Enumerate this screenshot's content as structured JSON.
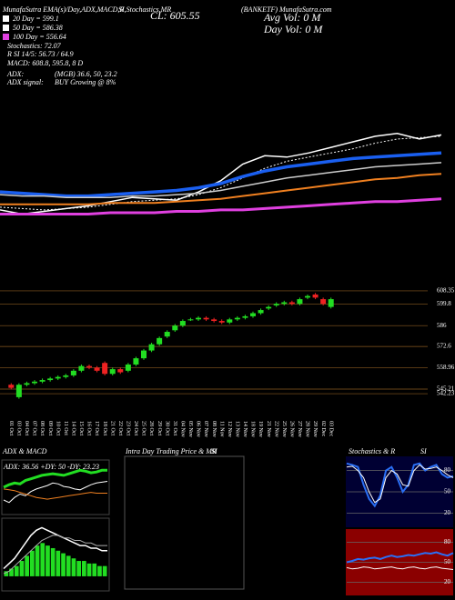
{
  "header": {
    "source": "MunafaSutra EMA(s)/Day,ADX,MACD,R",
    "source2": "SI,Stochastics,MR",
    "close": "CL: 605.55",
    "symbol": "(BANKETF) MunafaSutra.com",
    "ema20": "20 Day = 599.1",
    "ema50": "50 Day = 586.38",
    "ema100": "100 Day = 556.64",
    "stoch": "Stochastics: 72.07",
    "rsi": "R  SI 14/5: 56.73 / 64.9",
    "macd": "MACD: 608.8, 595.8, 8 D",
    "adx_label": "ADX:",
    "adx_value": "(MGB) 36.6, 50, 23.2",
    "signal_label": "ADX  signal:",
    "signal_value": "BUY Growing @ 8%",
    "avg_vol": "Avg Vol: 0  M",
    "day_vol": "Day Vol: 0  M",
    "panel_adx": "ADX  & MACD",
    "panel_intraday": "Intra Day Trading Price  & MR",
    "panel_intraday_si": "SI",
    "panel_stoch": "Stochastics & R",
    "panel_stoch_si": "SI"
  },
  "chart_data": [
    {
      "type": "line",
      "ylim": [
        530,
        615
      ],
      "series": [
        {
          "color": "#ffffff",
          "width": 1.5,
          "dash": false,
          "values": [
            549,
            546,
            548,
            550,
            552,
            555,
            558,
            557,
            556,
            562,
            570,
            582,
            588,
            587,
            590,
            594,
            598,
            602,
            604,
            600,
            603
          ]
        },
        {
          "color": "#ffffff",
          "width": 1,
          "dash": true,
          "values": [
            551,
            550,
            549,
            550,
            551,
            553,
            555,
            556,
            557,
            560,
            565,
            572,
            579,
            584,
            587,
            590,
            593,
            597,
            600,
            601,
            602
          ]
        },
        {
          "color": "#1a5ff0",
          "width": 3.5,
          "dash": false,
          "values": [
            562,
            561,
            560,
            559,
            559,
            560,
            561,
            562,
            563,
            565,
            568,
            573,
            577,
            580,
            582,
            584,
            586,
            587,
            588,
            589,
            590
          ]
        },
        {
          "color": "#cccccc",
          "width": 1.5,
          "dash": false,
          "values": [
            560,
            559,
            559,
            558,
            558,
            558,
            559,
            559,
            560,
            561,
            563,
            566,
            569,
            572,
            574,
            576,
            578,
            580,
            581,
            582,
            583
          ]
        },
        {
          "color": "#f08020",
          "width": 2,
          "dash": false,
          "values": [
            553,
            553,
            553,
            553,
            553,
            554,
            554,
            554,
            555,
            556,
            557,
            559,
            561,
            563,
            565,
            567,
            569,
            571,
            572,
            574,
            575
          ]
        },
        {
          "color": "#e040e0",
          "width": 3,
          "dash": false,
          "values": [
            546,
            546,
            546,
            546,
            546,
            547,
            547,
            547,
            548,
            548,
            549,
            549,
            550,
            551,
            552,
            553,
            554,
            555,
            555,
            556,
            557
          ]
        }
      ]
    },
    {
      "type": "candlestick",
      "ylim": [
        526.5,
        620
      ],
      "yticks": [
        608.35,
        599.8,
        586,
        572.6,
        558.96,
        545.21,
        542.23
      ],
      "up_color": "#22dd22",
      "down_color": "#ee2222",
      "categories": [
        "01 Oct",
        "03 Oct",
        "04 Oct",
        "07 Oct",
        "08 Oct",
        "09 Oct",
        "10 Oct",
        "11 Oct",
        "14 Oct",
        "15 Oct",
        "16 Oct",
        "17 Oct",
        "18 Oct",
        "21 Oct",
        "22 Oct",
        "23 Oct",
        "24 Oct",
        "25 Oct",
        "28 Oct",
        "29 Oct",
        "30 Oct",
        "31 Oct",
        "04 Nov",
        "05 Nov",
        "06 Nov",
        "07 Nov",
        "08 Nov",
        "11 Nov",
        "12 Nov",
        "13 Nov",
        "14 Nov",
        "18 Nov",
        "19 Nov",
        "21 Nov",
        "22 Nov",
        "25 Nov",
        "26 Nov",
        "27 Nov",
        "28 Nov",
        "29 Nov",
        "02 Dec",
        "03 Dec"
      ],
      "open": [
        548,
        540,
        548,
        549,
        550,
        551,
        552,
        553,
        554,
        557,
        560,
        559,
        562,
        555,
        558,
        557,
        561,
        565,
        570,
        574,
        579,
        583,
        586,
        590,
        590,
        591,
        590,
        589,
        588,
        590,
        591,
        592,
        594,
        597,
        599,
        600,
        601,
        600,
        604,
        606,
        603,
        598
      ],
      "high": [
        549,
        549,
        550,
        551,
        552,
        553,
        554,
        555,
        558,
        561,
        561,
        560,
        563,
        559,
        559,
        562,
        566,
        571,
        575,
        579,
        583,
        587,
        590,
        591,
        592,
        592,
        591,
        590,
        591,
        592,
        593,
        595,
        597,
        599,
        601,
        602,
        602,
        604,
        606,
        607,
        604,
        604
      ],
      "low": [
        545,
        539,
        547,
        548,
        549,
        550,
        551,
        552,
        553,
        556,
        558,
        556,
        554,
        554,
        555,
        556,
        560,
        564,
        569,
        573,
        578,
        582,
        585,
        589,
        589,
        589,
        588,
        587,
        587,
        589,
        590,
        591,
        593,
        596,
        598,
        599,
        599,
        599,
        603,
        603,
        599,
        597
      ],
      "close": [
        546,
        548,
        549,
        550,
        551,
        552,
        553,
        554,
        557,
        560,
        559,
        557,
        555,
        558,
        556,
        561,
        565,
        570,
        574,
        578,
        582,
        586,
        589,
        590,
        591,
        590,
        589,
        588,
        590,
        591,
        592,
        594,
        596,
        598,
        600,
        601,
        600,
        603,
        605,
        604,
        600,
        603
      ]
    },
    {
      "type": "line",
      "ylim": [
        0,
        60
      ],
      "annotation": "ADX: 36.56  +DY: 50  -DY: 23.23",
      "series": [
        {
          "color": "#22dd22",
          "width": 3,
          "dash": false,
          "values": [
            30,
            33,
            35,
            34,
            38,
            40,
            42,
            44,
            45,
            46,
            45,
            44,
            46,
            48,
            50,
            49,
            47,
            48,
            50,
            50
          ]
        },
        {
          "color": "#ffffff",
          "width": 1,
          "dash": false,
          "values": [
            15,
            12,
            18,
            22,
            20,
            25,
            28,
            30,
            32,
            35,
            34,
            31,
            30,
            28,
            27,
            30,
            33,
            35,
            36,
            37
          ]
        },
        {
          "color": "#f08020",
          "width": 1,
          "dash": false,
          "values": [
            28,
            27,
            26,
            24,
            22,
            20,
            18,
            17,
            16,
            17,
            18,
            19,
            20,
            21,
            22,
            23,
            24,
            23,
            23,
            23
          ]
        }
      ]
    },
    {
      "type": "bar",
      "ylim": [
        -5,
        22
      ],
      "color": "#22dd22",
      "values": [
        2,
        3,
        4,
        6,
        8,
        10,
        12,
        13,
        12,
        11,
        10,
        9,
        8,
        7,
        6,
        6,
        5,
        5,
        4,
        4
      ],
      "series": [
        {
          "color": "#ffffff",
          "width": 1.5,
          "dash": false,
          "values": [
            3,
            5,
            7,
            10,
            13,
            16,
            18,
            19,
            18,
            17,
            16,
            15,
            14,
            13,
            12,
            12,
            11,
            11,
            10,
            10
          ]
        },
        {
          "color": "#aaaaaa",
          "width": 1,
          "dash": false,
          "values": [
            1,
            2,
            4,
            6,
            8,
            10,
            12,
            14,
            15,
            16,
            16,
            15,
            15,
            14,
            14,
            13,
            13,
            12,
            12,
            12
          ]
        }
      ]
    },
    {
      "type": "line",
      "ylim": [
        0,
        100
      ],
      "yticks": [
        20,
        50,
        80
      ],
      "background": "#000033",
      "series": [
        {
          "color": "#2a6ff5",
          "width": 2,
          "dash": false,
          "values": [
            90,
            88,
            85,
            60,
            40,
            30,
            45,
            80,
            85,
            70,
            50,
            60,
            88,
            90,
            80,
            85,
            88,
            75,
            70,
            72
          ]
        },
        {
          "color": "#ffffff",
          "width": 1,
          "dash": false,
          "values": [
            85,
            86,
            80,
            70,
            50,
            35,
            40,
            70,
            80,
            75,
            60,
            58,
            80,
            88,
            82,
            83,
            85,
            80,
            74,
            70
          ]
        }
      ]
    },
    {
      "type": "line",
      "ylim": [
        0,
        100
      ],
      "yticks": [
        20,
        50,
        80
      ],
      "background": "#8b0000",
      "series": [
        {
          "color": "#2a6ff5",
          "width": 2,
          "dash": false,
          "values": [
            50,
            52,
            55,
            54,
            56,
            57,
            55,
            58,
            60,
            58,
            59,
            61,
            60,
            62,
            64,
            63,
            65,
            62,
            60,
            64
          ]
        },
        {
          "color": "#ffffff",
          "width": 1,
          "dash": false,
          "values": [
            42,
            40,
            41,
            43,
            42,
            40,
            41,
            42,
            43,
            41,
            40,
            42,
            43,
            41,
            40,
            42,
            43,
            41,
            40,
            39
          ]
        }
      ]
    }
  ]
}
